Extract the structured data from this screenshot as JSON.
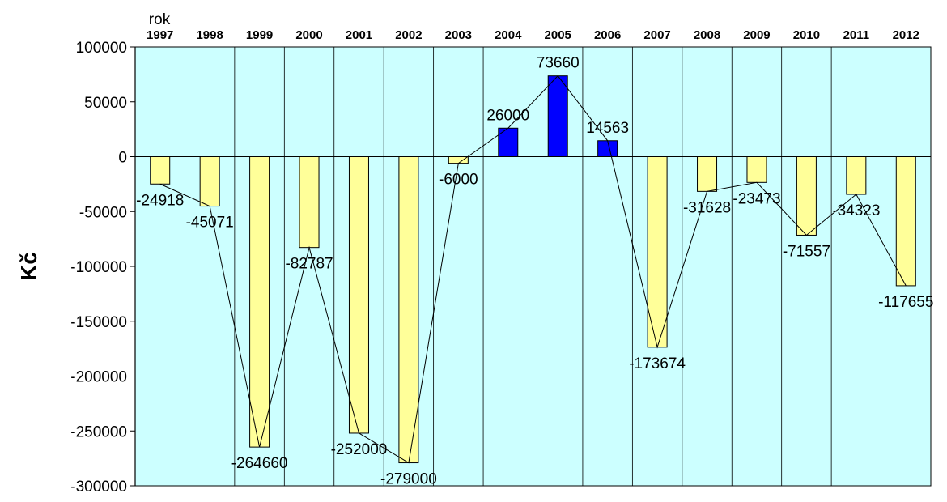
{
  "chart_data": {
    "type": "bar",
    "title": "",
    "xlabel": "rok",
    "ylabel": "Kč",
    "categories": [
      "1997",
      "1998",
      "1999",
      "2000",
      "2001",
      "2002",
      "2003",
      "2004",
      "2005",
      "2006",
      "2007",
      "2008",
      "2009",
      "2010",
      "2011",
      "2012"
    ],
    "values": [
      -24918,
      -45071,
      -264660,
      -82787,
      -252000,
      -279000,
      -6000,
      26000,
      73660,
      14563,
      -173674,
      -31628,
      -23473,
      -71557,
      -34323,
      -117655
    ],
    "data_labels": [
      "-24918",
      "-45071",
      "-264660",
      "-82787",
      "-252000",
      "-279000",
      "-6000",
      "26000",
      "73660",
      "14563",
      "-173674",
      "-31628",
      "-23473",
      "-71557",
      "-34323",
      "-117655"
    ],
    "y_ticks": [
      "100000",
      "50000",
      "0",
      "-50000",
      "-100000",
      "-150000",
      "-200000",
      "-250000",
      "-300000"
    ],
    "y_tick_values": [
      100000,
      50000,
      0,
      -50000,
      -100000,
      -150000,
      -200000,
      -250000,
      -300000
    ],
    "ylim": [
      -300000,
      100000
    ],
    "x_axis_position": "top",
    "connecting_line": true,
    "grid": "vertical",
    "legend": "none",
    "colors": {
      "plot_background": "#ccffff",
      "positive_bar": "#0000ff",
      "negative_bar": "#ffff99",
      "bar_edge": "#000000",
      "line": "#000000"
    }
  }
}
